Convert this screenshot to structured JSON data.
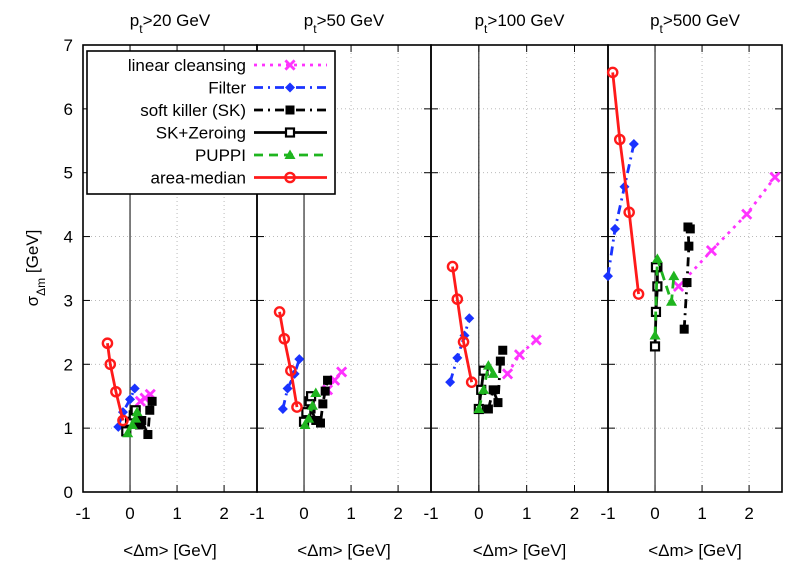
{
  "figure": {
    "ylabel": "σ_Δm [GeV]",
    "xlabel": "<Δm> [GeV]"
  },
  "legend": [
    {
      "label": "linear cleansing",
      "color": "#ff33ff",
      "dash": "3,5",
      "marker": "cross"
    },
    {
      "label": "Filter",
      "color": "#1a33ff",
      "dash": "9,5,2,5",
      "marker": "diamond"
    },
    {
      "label": "soft killer (SK)",
      "color": "#000000",
      "dash": "9,5,2,5",
      "marker": "filled-square"
    },
    {
      "label": "SK+Zeroing",
      "color": "#000000",
      "dash": "",
      "marker": "open-square"
    },
    {
      "label": "PUPPI",
      "color": "#1fb51f",
      "dash": "9,6",
      "marker": "triangle"
    },
    {
      "label": "area-median",
      "color": "#ff1a1a",
      "dash": "",
      "marker": "open-circle"
    }
  ],
  "chart_data": [
    {
      "type": "line",
      "title": "p_t>20 GeV",
      "xlabel": "<Δm> [GeV]",
      "ylabel": "σ_Δm [GeV]",
      "xlim": [
        -1,
        2.7
      ],
      "ylim": [
        0,
        7
      ],
      "xticks": [
        -1,
        0,
        1,
        2
      ],
      "yticks": [
        0,
        1,
        2,
        3,
        4,
        5,
        6,
        7
      ],
      "grid": true,
      "series": [
        {
          "name": "linear cleansing",
          "x": [
            0.22,
            0.32,
            0.43
          ],
          "y": [
            1.42,
            1.47,
            1.53
          ]
        },
        {
          "name": "Filter",
          "x": [
            -0.25,
            -0.15,
            0.0,
            0.1
          ],
          "y": [
            1.02,
            1.25,
            1.45,
            1.62
          ]
        },
        {
          "name": "soft killer (SK)",
          "x": [
            0.1,
            0.2,
            0.25,
            0.38,
            0.42,
            0.47
          ],
          "y": [
            1.25,
            1.05,
            1.12,
            0.9,
            1.28,
            1.42
          ]
        },
        {
          "name": "SK+Zeroing",
          "x": [
            -0.08,
            0.0,
            0.08,
            0.12
          ],
          "y": [
            0.95,
            1.1,
            1.2,
            1.28
          ]
        },
        {
          "name": "PUPPI",
          "x": [
            -0.05,
            0.05,
            0.12,
            0.15
          ],
          "y": [
            0.92,
            1.05,
            1.15,
            1.25
          ]
        },
        {
          "name": "area-median",
          "x": [
            -0.48,
            -0.42,
            -0.3,
            -0.15
          ],
          "y": [
            2.33,
            2.0,
            1.57,
            1.12
          ]
        }
      ]
    },
    {
      "type": "line",
      "title": "p_t>50 GeV",
      "xlabel": "<Δm> [GeV]",
      "ylabel": "",
      "xlim": [
        -1,
        2.7
      ],
      "ylim": [
        0,
        7
      ],
      "xticks": [
        -1,
        0,
        1,
        2
      ],
      "yticks": [
        0,
        1,
        2,
        3,
        4,
        5,
        6,
        7
      ],
      "grid": true,
      "series": [
        {
          "name": "linear cleansing",
          "x": [
            0.5,
            0.65,
            0.8
          ],
          "y": [
            1.6,
            1.75,
            1.88
          ]
        },
        {
          "name": "Filter",
          "x": [
            -0.45,
            -0.35,
            -0.2,
            -0.1
          ],
          "y": [
            1.3,
            1.62,
            1.85,
            2.08
          ]
        },
        {
          "name": "soft killer (SK)",
          "x": [
            0.15,
            0.25,
            0.35,
            0.4,
            0.45,
            0.5
          ],
          "y": [
            1.3,
            1.12,
            1.08,
            1.38,
            1.58,
            1.75
          ]
        },
        {
          "name": "SK+Zeroing",
          "x": [
            0.0,
            0.05,
            0.12,
            0.15
          ],
          "y": [
            1.1,
            1.25,
            1.42,
            1.5
          ]
        },
        {
          "name": "PUPPI",
          "x": [
            0.02,
            0.1,
            0.18,
            0.25
          ],
          "y": [
            1.05,
            1.15,
            1.35,
            1.55
          ]
        },
        {
          "name": "area-median",
          "x": [
            -0.52,
            -0.42,
            -0.28,
            -0.15
          ],
          "y": [
            2.82,
            2.4,
            1.9,
            1.33
          ]
        }
      ]
    },
    {
      "type": "line",
      "title": "p_t>100 GeV",
      "xlabel": "<Δm> [GeV]",
      "ylabel": "",
      "xlim": [
        -1,
        2.7
      ],
      "ylim": [
        0,
        7
      ],
      "xticks": [
        -1,
        0,
        1,
        2
      ],
      "yticks": [
        0,
        1,
        2,
        3,
        4,
        5,
        6,
        7
      ],
      "grid": true,
      "series": [
        {
          "name": "linear cleansing",
          "x": [
            0.6,
            0.85,
            1.2
          ],
          "y": [
            1.85,
            2.15,
            2.38
          ]
        },
        {
          "name": "Filter",
          "x": [
            -0.6,
            -0.45,
            -0.3,
            -0.2
          ],
          "y": [
            1.72,
            2.1,
            2.45,
            2.72
          ]
        },
        {
          "name": "soft killer (SK)",
          "x": [
            0.2,
            0.3,
            0.4,
            0.45,
            0.5
          ],
          "y": [
            1.3,
            1.6,
            1.4,
            2.05,
            2.22
          ]
        },
        {
          "name": "SK+Zeroing",
          "x": [
            0.0,
            0.05,
            0.1
          ],
          "y": [
            1.3,
            1.6,
            1.9
          ]
        },
        {
          "name": "PUPPI",
          "x": [
            0.0,
            0.1,
            0.2,
            0.3
          ],
          "y": [
            1.3,
            1.6,
            1.98,
            1.85
          ]
        },
        {
          "name": "area-median",
          "x": [
            -0.55,
            -0.45,
            -0.32,
            -0.15
          ],
          "y": [
            3.53,
            3.02,
            2.35,
            1.72
          ]
        }
      ]
    },
    {
      "type": "line",
      "title": "p_t>500 GeV",
      "xlabel": "<Δm> [GeV]",
      "ylabel": "",
      "xlim": [
        -1,
        2.7
      ],
      "ylim": [
        0,
        7
      ],
      "xticks": [
        -1,
        0,
        1,
        2
      ],
      "yticks": [
        0,
        1,
        2,
        3,
        4,
        5,
        6,
        7
      ],
      "grid": true,
      "series": [
        {
          "name": "linear cleansing",
          "x": [
            0.5,
            1.2,
            1.95,
            2.55
          ],
          "y": [
            3.22,
            3.78,
            4.35,
            4.93
          ]
        },
        {
          "name": "Filter",
          "x": [
            -1.0,
            -0.85,
            -0.65,
            -0.45
          ],
          "y": [
            3.38,
            4.12,
            4.78,
            5.45
          ]
        },
        {
          "name": "soft killer (SK)",
          "x": [
            0.62,
            0.68,
            0.72,
            0.7,
            0.75
          ],
          "y": [
            2.55,
            3.28,
            3.85,
            4.15,
            4.12
          ]
        },
        {
          "name": "SK+Zeroing",
          "x": [
            0.0,
            0.02,
            0.05,
            0.05,
            0.02
          ],
          "y": [
            2.28,
            2.82,
            3.22,
            3.52,
            3.52
          ]
        },
        {
          "name": "PUPPI",
          "x": [
            0.0,
            0.05,
            0.35,
            0.4
          ],
          "y": [
            2.45,
            3.65,
            2.98,
            3.38
          ]
        },
        {
          "name": "area-median",
          "x": [
            -0.9,
            -0.75,
            -0.55,
            -0.35
          ],
          "y": [
            6.57,
            5.52,
            4.38,
            3.1
          ]
        }
      ]
    }
  ]
}
